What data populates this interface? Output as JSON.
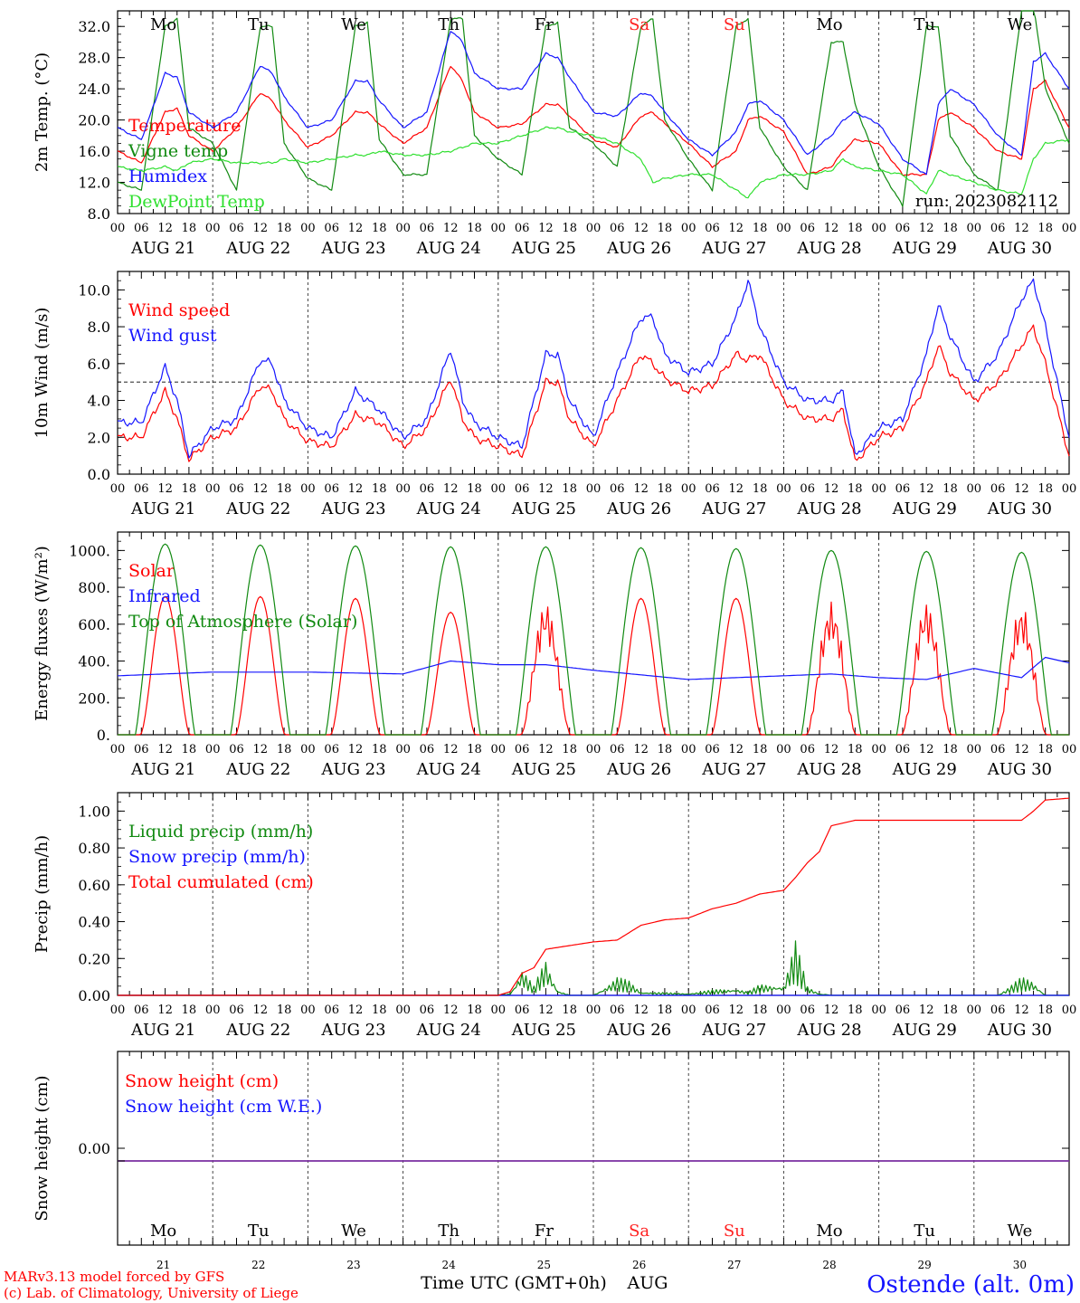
{
  "days": [
    "AUG 21",
    "AUG 22",
    "AUG 23",
    "AUG 24",
    "AUG 25",
    "AUG 26",
    "AUG 27",
    "AUG 28",
    "AUG 29",
    "AUG 30"
  ],
  "weekdays": [
    {
      "label": "Mo",
      "color": "#000000"
    },
    {
      "label": "Tu",
      "color": "#000000"
    },
    {
      "label": "We",
      "color": "#000000"
    },
    {
      "label": "Th",
      "color": "#000000"
    },
    {
      "label": "Fr",
      "color": "#000000"
    },
    {
      "label": "Sa",
      "color": "#ff2020"
    },
    {
      "label": "Su",
      "color": "#ff2020"
    },
    {
      "label": "Mo",
      "color": "#000000"
    },
    {
      "label": "Tu",
      "color": "#000000"
    },
    {
      "label": "We",
      "color": "#000000"
    }
  ],
  "day_numbers": [
    "21",
    "22",
    "23",
    "24",
    "25",
    "26",
    "27",
    "28",
    "29",
    "30"
  ],
  "hour_ticks": [
    "00",
    "06",
    "12",
    "18"
  ],
  "run_label": "run: 2023082112",
  "xlabel": "Time UTC (GMT+0h)",
  "month": "AUG",
  "footer_left": [
    "MARv3.13 model forced by GFS",
    "(c) Lab. of Climatology, University of Liege"
  ],
  "station": "Ostende (alt. 0m)",
  "colors": {
    "red": "#ff0000",
    "blue": "#1515ff",
    "green": "#118a11",
    "lightgreen": "#30e030",
    "purple": "#7a2ea0"
  },
  "chart_data": [
    {
      "type": "line",
      "ylabel": "2m Temp. (°C)",
      "ylim": [
        8,
        34
      ],
      "yticks": [
        "8.0",
        "12.0",
        "16.0",
        "20.0",
        "24.0",
        "28.0",
        "32.0"
      ],
      "x_hours": [
        0,
        6,
        12,
        15,
        18,
        24,
        30,
        36,
        39,
        42,
        48,
        54,
        60,
        63,
        66,
        72,
        78,
        84,
        87,
        90,
        96,
        102,
        108,
        111,
        114,
        120,
        126,
        132,
        135,
        138,
        144,
        150,
        156,
        159,
        162,
        168,
        174,
        180,
        183,
        186,
        192,
        198,
        204,
        207,
        210,
        216,
        222,
        228,
        231,
        234,
        240
      ],
      "series": [
        {
          "name": "Temperature",
          "color": "red",
          "values": [
            16,
            14.5,
            21,
            21.5,
            18,
            16,
            19,
            23.5,
            22.5,
            20,
            16.5,
            18,
            21,
            21,
            19.5,
            17,
            19,
            27,
            25,
            21,
            19,
            19.5,
            22,
            22,
            20.5,
            17.5,
            16.5,
            20.5,
            21,
            19.5,
            17,
            14,
            16,
            20,
            20.5,
            18.5,
            13,
            14,
            16,
            17.5,
            17,
            13,
            13,
            20,
            21,
            19,
            16,
            15,
            24,
            25,
            19
          ]
        },
        {
          "name": "Vigne temp",
          "color": "green",
          "values": [
            12,
            11,
            32,
            33,
            19,
            17,
            11,
            32,
            32,
            17,
            12.5,
            11,
            32,
            32.5,
            17.5,
            13,
            13,
            33,
            33,
            18,
            15,
            13,
            32,
            32.5,
            19,
            17,
            14,
            32,
            33,
            20,
            15,
            11,
            32,
            33,
            19,
            14,
            11,
            30,
            30,
            22,
            14,
            9,
            32,
            32,
            18,
            13,
            11,
            34,
            35,
            24,
            17
          ]
        },
        {
          "name": "Humidex",
          "color": "blue",
          "values": [
            19,
            17.5,
            26,
            25.5,
            21,
            19,
            21,
            27,
            26,
            23,
            19,
            20,
            25,
            25,
            22.5,
            19,
            21,
            31.5,
            30,
            26,
            24,
            24,
            28.5,
            28,
            25.5,
            21,
            20.5,
            23.5,
            23,
            21,
            17.5,
            15.5,
            18.5,
            22,
            22.5,
            20,
            15.5,
            18,
            20,
            21,
            19.5,
            15,
            13,
            22,
            24,
            22,
            18,
            15.5,
            27.5,
            28.5,
            24
          ]
        },
        {
          "name": "DewPoint Temp",
          "color": "lightgreen",
          "values": [
            14,
            13.5,
            14,
            13.5,
            14.5,
            15,
            14.5,
            14.5,
            14.5,
            15,
            14.5,
            15,
            15.5,
            15.5,
            16,
            15.5,
            15.5,
            16,
            16.5,
            17,
            17,
            18,
            19,
            19,
            18.5,
            18,
            17,
            15,
            12,
            12.5,
            13,
            13,
            11,
            10,
            12,
            13,
            13,
            13.5,
            15,
            14,
            13.5,
            13,
            10.5,
            13.5,
            13,
            12,
            11,
            10.5,
            15,
            17,
            17.5
          ]
        }
      ]
    },
    {
      "type": "line",
      "ylabel": "10m Wind (m/s)",
      "ylim": [
        0,
        11
      ],
      "yticks": [
        "0.0",
        "2.0",
        "4.0",
        "6.0",
        "8.0",
        "10.0"
      ],
      "reference_line": 5,
      "x_hours": [
        0,
        6,
        12,
        15,
        18,
        24,
        30,
        36,
        39,
        42,
        48,
        54,
        60,
        63,
        66,
        72,
        78,
        84,
        87,
        90,
        96,
        102,
        108,
        111,
        114,
        120,
        126,
        132,
        135,
        138,
        144,
        150,
        156,
        159,
        162,
        168,
        174,
        180,
        183,
        186,
        192,
        198,
        204,
        207,
        210,
        216,
        222,
        228,
        231,
        234,
        240
      ],
      "series": [
        {
          "name": "Wind speed",
          "color": "red",
          "values": [
            2,
            2,
            4.5,
            3,
            0.8,
            2,
            2.5,
            4.8,
            4.5,
            3,
            1.8,
            1.5,
            3.2,
            3,
            2.8,
            1.5,
            2.5,
            5.2,
            3,
            2,
            1.5,
            1,
            5,
            5,
            3,
            1.5,
            4,
            6.5,
            6,
            5.2,
            4.5,
            4.8,
            6.5,
            6.2,
            6.5,
            4,
            3,
            3,
            3.5,
            0.7,
            2,
            2.5,
            5,
            7,
            5.5,
            4,
            5,
            7,
            8,
            6,
            1
          ]
        },
        {
          "name": "Wind gust",
          "color": "blue",
          "values": [
            2.8,
            2.8,
            5.8,
            4,
            1,
            2.5,
            3,
            6.2,
            6,
            4,
            2.5,
            2,
            4.5,
            4,
            3.5,
            2,
            3,
            6.8,
            4,
            2.8,
            2,
            1.5,
            6.5,
            6.5,
            4,
            2,
            5.5,
            8.5,
            8.5,
            6.5,
            5.5,
            6,
            8.5,
            10.5,
            8,
            5,
            4,
            4,
            4.5,
            1,
            2.5,
            3,
            6.5,
            9.2,
            7.5,
            5,
            6.5,
            9.5,
            10.5,
            8,
            2
          ]
        }
      ]
    },
    {
      "type": "line",
      "ylabel": "Energy fluxes (W/m²)",
      "ylim": [
        0,
        1100
      ],
      "yticks": [
        "0.",
        "200.",
        "400.",
        "600.",
        "800.",
        "1000."
      ],
      "series": [
        {
          "name": "Solar",
          "color": "red",
          "daily_peaks": [
            750,
            750,
            740,
            665,
            720,
            740,
            740,
            720,
            720,
            700
          ]
        },
        {
          "name": "Infrared",
          "color": "blue",
          "x_hours": [
            0,
            24,
            48,
            72,
            84,
            96,
            108,
            120,
            144,
            168,
            180,
            192,
            204,
            216,
            228,
            234,
            240
          ],
          "values": [
            320,
            340,
            340,
            330,
            400,
            380,
            380,
            350,
            300,
            320,
            330,
            310,
            300,
            360,
            310,
            420,
            390
          ]
        },
        {
          "name": "Top of Atmosphere (Solar)",
          "color": "green",
          "daily_peaks": [
            1035,
            1030,
            1025,
            1020,
            1020,
            1015,
            1010,
            1000,
            995,
            990
          ]
        }
      ]
    },
    {
      "type": "line",
      "ylabel": "Precip (mm/h)",
      "ylim": [
        0,
        1.1
      ],
      "yticks": [
        "0.00",
        "0.20",
        "0.40",
        "0.60",
        "0.80",
        "1.00"
      ],
      "series": [
        {
          "name": "Liquid precip (mm/h)",
          "color": "green",
          "x_hours": [
            0,
            96,
            99,
            102,
            105,
            108,
            111,
            114,
            120,
            126,
            129,
            132,
            144,
            150,
            156,
            159,
            162,
            168,
            171,
            174,
            177,
            180,
            186,
            210,
            222,
            228,
            231,
            234,
            240
          ],
          "values": [
            0,
            0,
            0.01,
            0.15,
            0.05,
            0.2,
            0.03,
            0,
            0,
            0.1,
            0.08,
            0.02,
            0.01,
            0.03,
            0.04,
            0.02,
            0.06,
            0.06,
            0.3,
            0.05,
            0.01,
            0,
            0,
            0,
            0,
            0.1,
            0.08,
            0,
            0
          ]
        },
        {
          "name": "Snow precip (mm/h)",
          "color": "blue",
          "x_hours": [
            0,
            240
          ],
          "values": [
            0,
            0
          ]
        },
        {
          "name": "Total cumulated (cm)",
          "color": "red",
          "x_hours": [
            0,
            96,
            99,
            102,
            105,
            108,
            111,
            120,
            126,
            132,
            138,
            144,
            150,
            156,
            162,
            168,
            171,
            174,
            177,
            180,
            186,
            216,
            228,
            231,
            234,
            240
          ],
          "values": [
            0,
            0,
            0.02,
            0.12,
            0.15,
            0.25,
            0.26,
            0.29,
            0.3,
            0.38,
            0.41,
            0.42,
            0.47,
            0.5,
            0.55,
            0.57,
            0.64,
            0.72,
            0.78,
            0.92,
            0.95,
            0.95,
            0.95,
            1.0,
            1.06,
            1.07
          ]
        }
      ]
    },
    {
      "type": "line",
      "ylabel": "Snow height (cm)",
      "yticks": [
        "0.00"
      ],
      "series": [
        {
          "name": "Snow height (cm)",
          "color": "red",
          "x_hours": [
            0,
            240
          ],
          "values": [
            0,
            0
          ]
        },
        {
          "name": "Snow height (cm W.E.)",
          "color": "blue",
          "x_hours": [
            0,
            240
          ],
          "values": [
            0,
            0
          ]
        }
      ]
    }
  ]
}
